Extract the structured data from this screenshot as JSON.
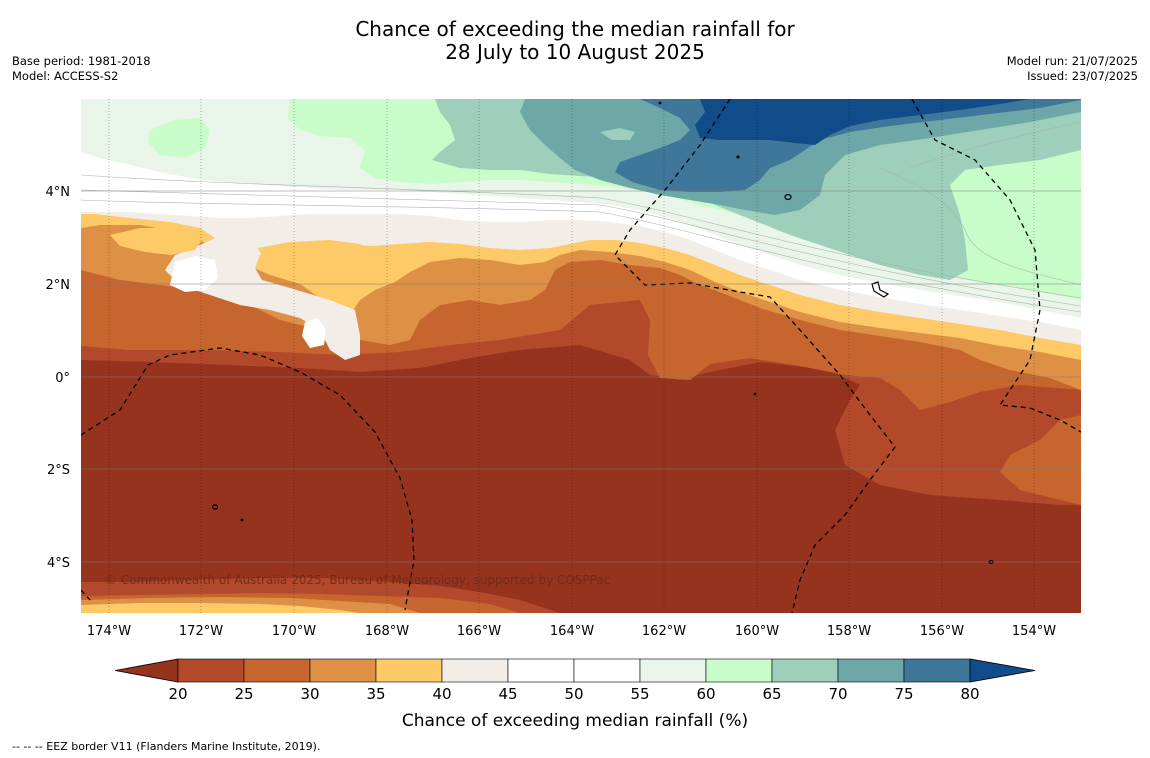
{
  "header": {
    "title_line1": "Chance of exceeding the median rainfall for",
    "title_line2": "28 July to 10 August 2025",
    "base_period": "Base period: 1981-2018",
    "model": "Model: ACCESS-S2",
    "model_run": "Model run: 21/07/2025",
    "issued": "Issued: 23/07/2025"
  },
  "map": {
    "copyright": "© Commonwealth of Australia 2025, Bureau of Meteorology, supported by COSPPac",
    "lat_labels": [
      "4°N",
      "2°N",
      "0°",
      "2°S",
      "4°S"
    ],
    "lon_labels": [
      "174°W",
      "172°W",
      "170°W",
      "168°W",
      "166°W",
      "164°W",
      "162°W",
      "160°W",
      "158°W",
      "156°W",
      "154°W"
    ]
  },
  "colorbar": {
    "title": "Chance of exceeding median rainfall (%)",
    "ticks": [
      "20",
      "25",
      "30",
      "35",
      "40",
      "45",
      "50",
      "55",
      "60",
      "65",
      "70",
      "75",
      "80"
    ],
    "colors": [
      "#96331f",
      "#b2492a",
      "#c7652f",
      "#de9045",
      "#fdca67",
      "#f2ede6",
      "#ffffff",
      "#ffffff",
      "#e9f5e8",
      "#c8fcc9",
      "#9dcfba",
      "#6ea7a7",
      "#3f779b",
      "#104c89"
    ]
  },
  "footer": {
    "eez_note": "--  --  -- EEZ border V11 (Flanders Marine Institute, 2019)."
  }
}
